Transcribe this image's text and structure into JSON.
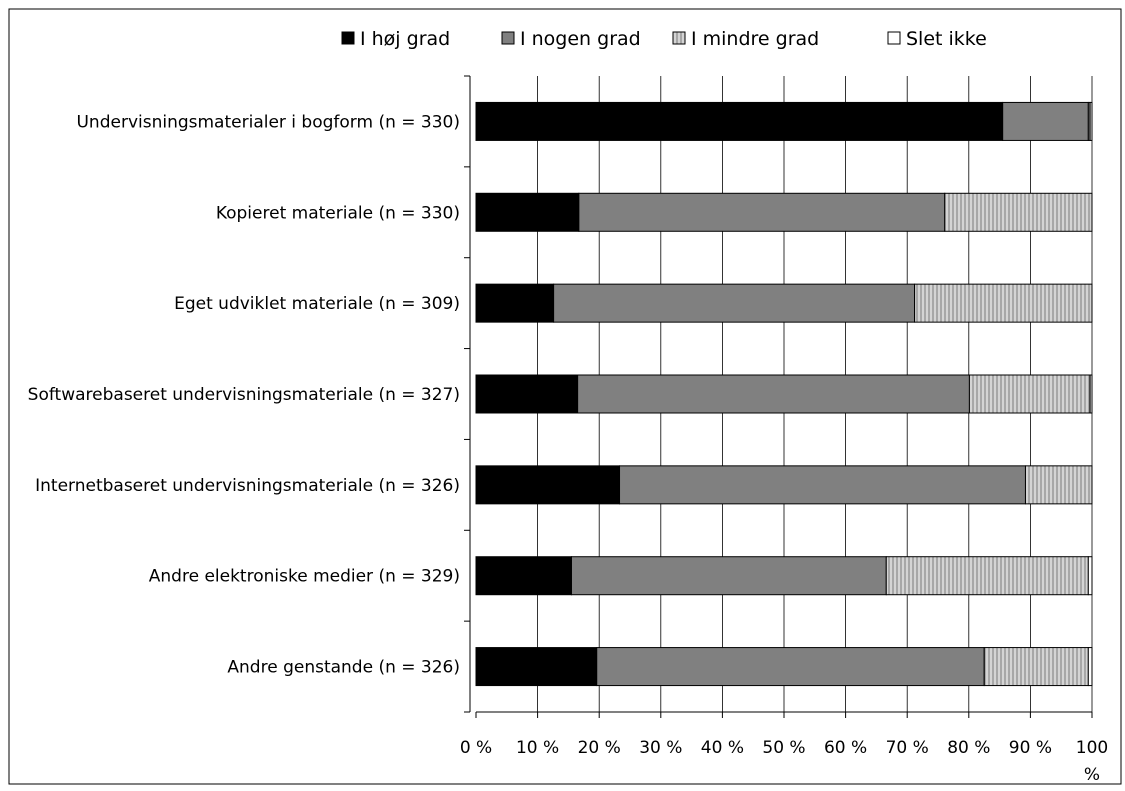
{
  "chart_data": {
    "type": "bar",
    "orientation": "horizontal",
    "stacked": true,
    "normalized_percent": true,
    "categories": [
      "Undervisningsmaterialer i bogform  (n = 330)",
      "Kopieret materiale (n = 330)",
      "Eget udviklet materiale (n = 309)",
      "Softwarebaseret undervisningsmateriale (n = 327)",
      "Internetbaseret undervisningsmateriale (n = 326)",
      "Andre elektroniske medier (n = 329)",
      "Andre genstande (n = 326)"
    ],
    "series": [
      {
        "name": "I høj grad",
        "color": "#000000",
        "pattern": "solid",
        "values": [
          85.5,
          16.7,
          12.6,
          16.5,
          23.3,
          15.5,
          19.6
        ]
      },
      {
        "name": "I nogen grad",
        "color": "#808080",
        "pattern": "solid",
        "values": [
          13.9,
          59.4,
          58.6,
          63.6,
          65.9,
          51.1,
          62.9
        ]
      },
      {
        "name": "I mindre grad",
        "color": "#c8c8c8",
        "pattern": "vertical-stripes",
        "values": [
          0.3,
          23.9,
          28.8,
          19.6,
          10.8,
          32.8,
          16.9
        ]
      },
      {
        "name": "Slet ikke",
        "color": "#ffffff",
        "pattern": "solid",
        "values": [
          0.3,
          0.0,
          0.0,
          0.3,
          0.0,
          0.6,
          0.6
        ]
      }
    ],
    "x_ticks": [
      "0 %",
      "10 %",
      "20 %",
      "30 %",
      "40 %",
      "50 %",
      "60 %",
      "70 %",
      "80 %",
      "90 %",
      "100 %"
    ],
    "xlim": [
      0,
      100
    ],
    "grid": "vertical",
    "legend": "top"
  }
}
